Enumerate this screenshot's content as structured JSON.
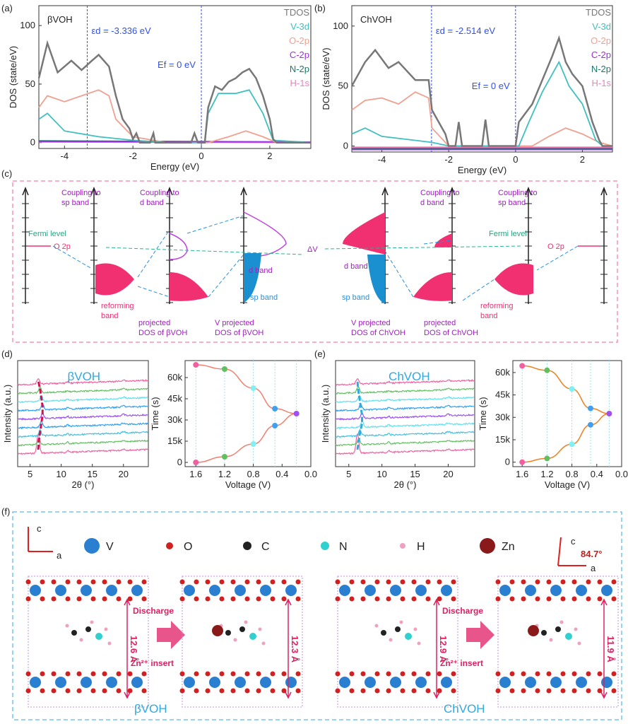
{
  "panel_labels": {
    "a": "(a)",
    "b": "(b)",
    "c": "(c)",
    "d": "(d)",
    "e": "(e)",
    "f": "(f)"
  },
  "chart_data": [
    {
      "id": "a",
      "type": "line",
      "title": "βVOH",
      "xlabel": "Energy (eV)",
      "ylabel": "DOS (state/eV)",
      "xlim": [
        -4.75,
        3.2
      ],
      "ylim": [
        -5,
        117
      ],
      "xticks": [
        -4,
        -2,
        0,
        2
      ],
      "yticks": [
        0,
        50,
        100
      ],
      "annotations": {
        "ed": "εd = -3.336 eV",
        "ed_value": -3.336,
        "ef": "Ef = 0 eV",
        "ef_value": 0
      },
      "legend": [
        "TDOS",
        "V-3d",
        "O-2p",
        "C-2p",
        "N-2p",
        "H-1s"
      ],
      "colors": [
        "#777777",
        "#3fbfbf",
        "#f0a090",
        "#9b30e0",
        "#1a7a6a",
        "#f080c0"
      ],
      "series": [
        {
          "name": "TDOS",
          "x": [
            -4.75,
            -4.5,
            -4.2,
            -3.8,
            -3.5,
            -3.2,
            -3,
            -2.7,
            -2.5,
            -2.3,
            -2.1,
            -2,
            -1.9,
            -1.8,
            -1.5,
            -1.4,
            -1.35,
            -0.3,
            -0.2,
            -0.1,
            0.1,
            0.2,
            0.4,
            0.6,
            0.8,
            1,
            1.2,
            1.4,
            1.6,
            1.8,
            2,
            2.1,
            2.2,
            3.2
          ],
          "y": [
            55,
            85,
            60,
            70,
            62,
            70,
            75,
            65,
            40,
            20,
            12,
            3,
            8,
            0,
            0,
            8,
            0,
            0,
            8,
            0,
            0,
            30,
            48,
            45,
            52,
            55,
            60,
            63,
            55,
            40,
            20,
            3,
            0,
            0
          ]
        },
        {
          "name": "V-3d",
          "x": [
            -4.75,
            -4.5,
            -4,
            -3,
            -2,
            -1,
            0.1,
            0.2,
            0.5,
            1,
            1.4,
            1.8,
            2.1,
            3.2
          ],
          "y": [
            20,
            25,
            10,
            5,
            2,
            0,
            0,
            25,
            42,
            42,
            45,
            25,
            2,
            0
          ]
        },
        {
          "name": "O-2p",
          "x": [
            -4.75,
            -4.5,
            -4,
            -3.5,
            -3,
            -2.7,
            -2.5,
            -2,
            -1,
            0.2,
            0.8,
            1.3,
            1.8,
            2.2,
            3.2
          ],
          "y": [
            30,
            40,
            35,
            40,
            45,
            40,
            20,
            5,
            0,
            0,
            5,
            10,
            5,
            0,
            0
          ]
        },
        {
          "name": "C-2p",
          "x": [
            -4.75,
            3.2
          ],
          "y": [
            1,
            0.5
          ]
        },
        {
          "name": "N-2p",
          "x": [
            -4.75,
            3.2
          ],
          "y": [
            1.5,
            0.5
          ]
        },
        {
          "name": "H-1s",
          "x": [
            -4.75,
            3.2
          ],
          "y": [
            0.5,
            0
          ]
        }
      ]
    },
    {
      "id": "b",
      "type": "line",
      "title": "ChVOH",
      "xlabel": "Energy (eV)",
      "ylabel": "DOS (state/eV)",
      "xlim": [
        -4.9,
        2.9
      ],
      "ylim": [
        -5,
        117
      ],
      "xticks": [
        -4,
        -2,
        0,
        2
      ],
      "yticks": [
        0,
        50,
        100
      ],
      "annotations": {
        "ed": "εd = -2.514 eV",
        "ed_value": -2.514,
        "ef": "Ef = 0 eV",
        "ef_value": 0
      },
      "legend": [
        "TDOS",
        "V-3d",
        "O-2p",
        "C-2p",
        "N-2p",
        "H-1s"
      ],
      "colors": [
        "#777777",
        "#3fbfbf",
        "#f0a090",
        "#9b30e0",
        "#1a7a6a",
        "#f080c0"
      ],
      "series": [
        {
          "name": "TDOS",
          "x": [
            -4.9,
            -4.5,
            -4.2,
            -3.8,
            -3.5,
            -3,
            -2.6,
            -2.5,
            -2.3,
            -2.1,
            -2,
            -1.8,
            -1.7,
            -1.6,
            -1,
            -0.9,
            -0.8,
            0,
            0.1,
            0.5,
            0.8,
            1.1,
            1.3,
            1.5,
            1.7,
            2,
            2.3,
            2.5,
            2.6,
            2.9
          ],
          "y": [
            50,
            70,
            80,
            65,
            70,
            55,
            55,
            30,
            20,
            10,
            0,
            0,
            20,
            0,
            0,
            22,
            0,
            0,
            20,
            35,
            55,
            75,
            90,
            70,
            60,
            50,
            20,
            5,
            0,
            0
          ]
        },
        {
          "name": "V-3d",
          "x": [
            -4.9,
            -4.5,
            -4,
            -2.5,
            -2,
            0.1,
            0.4,
            0.8,
            1.3,
            1.6,
            2,
            2.4,
            2.6,
            2.9
          ],
          "y": [
            10,
            15,
            8,
            3,
            0,
            0,
            20,
            45,
            70,
            50,
            35,
            5,
            0,
            0
          ]
        },
        {
          "name": "O-2p",
          "x": [
            -4.9,
            -4.5,
            -4,
            -3.5,
            -3,
            -2.6,
            -2.5,
            -2,
            0.5,
            1,
            1.5,
            2,
            2.5,
            2.9
          ],
          "y": [
            30,
            38,
            40,
            35,
            45,
            40,
            15,
            0,
            0,
            8,
            15,
            10,
            3,
            0
          ]
        },
        {
          "name": "C-2p",
          "x": [
            -4.9,
            2.9
          ],
          "y": [
            -3,
            -3
          ]
        },
        {
          "name": "N-2p",
          "x": [
            -4.9,
            2.9
          ],
          "y": [
            -2,
            -2
          ]
        },
        {
          "name": "H-1s",
          "x": [
            -4.9,
            2.9
          ],
          "y": [
            -1,
            -1
          ]
        }
      ]
    },
    {
      "id": "d-xrd",
      "type": "line",
      "title": "βVOH",
      "xlabel": "2θ (°)",
      "ylabel": "Intensity (a.u.)",
      "xlim": [
        3,
        24
      ],
      "xticks": [
        5,
        10,
        15,
        20
      ],
      "colors": [
        "#f060a0",
        "#60c060",
        "#40c0e0",
        "#30a0f0",
        "#9b50f0",
        "#30a0f0",
        "#60e0f0",
        "#60c060",
        "#f060a0"
      ],
      "peak_positions": [
        6.3,
        6.6,
        6.8,
        7.0,
        7.0,
        6.8,
        6.6,
        6.4,
        6.3
      ]
    },
    {
      "id": "d-time",
      "type": "line",
      "xlabel": "Voltage (V)",
      "ylabel": "Time (s)",
      "xlim": [
        1.75,
        0
      ],
      "ylim": [
        -3000,
        72000
      ],
      "xticks": [
        "1.6",
        "1.2",
        "0.8",
        "0.4",
        "0.0"
      ],
      "yticks": [
        "0",
        "15k",
        "30k",
        "45k",
        "60k"
      ],
      "color": "#f08070",
      "points": [
        {
          "v": 1.6,
          "t": 69000,
          "c": "#f060a0"
        },
        {
          "v": 1.2,
          "t": 66000,
          "c": "#60c060"
        },
        {
          "v": 0.8,
          "t": 52500,
          "c": "#80f0f0"
        },
        {
          "v": 0.5,
          "t": 38000,
          "c": "#40a0f0"
        },
        {
          "v": 0.2,
          "t": 34500,
          "c": "#a050f0"
        },
        {
          "v": 0.5,
          "t": 26000,
          "c": "#40a0f0"
        },
        {
          "v": 0.8,
          "t": 13000,
          "c": "#80f0f0"
        },
        {
          "v": 1.2,
          "t": 4000,
          "c": "#60c060"
        },
        {
          "v": 1.6,
          "t": 0,
          "c": "#f060a0"
        }
      ]
    },
    {
      "id": "e-xrd",
      "type": "line",
      "title": "ChVOH",
      "xlabel": "2θ (°)",
      "ylabel": "Intensity (a.u.)",
      "xlim": [
        3,
        24
      ],
      "xticks": [
        5,
        10,
        15,
        20
      ],
      "colors": [
        "#f060a0",
        "#60c060",
        "#40c0e0",
        "#60e0f0",
        "#9b50f0",
        "#30a0f0",
        "#60e0f0",
        "#60c060",
        "#f060a0"
      ],
      "peak_positions": [
        6.3,
        6.4,
        6.6,
        6.8,
        7.0,
        7.0,
        6.7,
        6.5,
        6.3
      ]
    },
    {
      "id": "e-time",
      "type": "line",
      "xlabel": "Voltage (V)",
      "ylabel": "Time (s)",
      "xlim": [
        1.75,
        0
      ],
      "ylim": [
        -3000,
        68000
      ],
      "xticks": [
        "1.6",
        "1.2",
        "0.8",
        "0.4",
        "0.0"
      ],
      "yticks": [
        "0",
        "15k",
        "30k",
        "45k",
        "60k"
      ],
      "color": "#f08020",
      "points": [
        {
          "v": 1.6,
          "t": 64500,
          "c": "#f060a0"
        },
        {
          "v": 1.2,
          "t": 61500,
          "c": "#60c060"
        },
        {
          "v": 0.8,
          "t": 49000,
          "c": "#80f0f0"
        },
        {
          "v": 0.5,
          "t": 36000,
          "c": "#40a0f0"
        },
        {
          "v": 0.2,
          "t": 32500,
          "c": "#a050f0"
        },
        {
          "v": 0.5,
          "t": 25000,
          "c": "#40a0f0"
        },
        {
          "v": 0.8,
          "t": 12000,
          "c": "#80f0f0"
        },
        {
          "v": 1.2,
          "t": 2500,
          "c": "#60c060"
        },
        {
          "v": 1.6,
          "t": 0,
          "c": "#f060a0"
        }
      ]
    }
  ],
  "diagram_c": {
    "o2p": "O 2p",
    "coupling_sp": [
      "Coupling to",
      "sp band"
    ],
    "coupling_d": [
      "Coupling to",
      "d band"
    ],
    "fermi": "Fermi level",
    "reforming": [
      "reforming",
      "band"
    ],
    "d_band": "d band",
    "sp_band": "sp band",
    "delta_v": "ΔV",
    "pdos_b": [
      "projected",
      "DOS of βVOH"
    ],
    "vpdos_b": [
      "V projected",
      "DOS of βVOH"
    ],
    "vpdos_c": [
      "V projected",
      "DOS of ChVOH"
    ],
    "pdos_c": [
      "projected",
      "DOS of ChVOH"
    ]
  },
  "structure_f": {
    "axes": {
      "c": "c",
      "a": "a",
      "angle": "84.7°"
    },
    "legend": [
      {
        "label": "V",
        "color": "#2a7fd0"
      },
      {
        "label": "O",
        "color": "#d02020"
      },
      {
        "label": "C",
        "color": "#222222"
      },
      {
        "label": "N",
        "color": "#30d0d0"
      },
      {
        "label": "H",
        "color": "#f0a0c0"
      },
      {
        "label": "Zn",
        "color": "#8a1a1a"
      }
    ],
    "discharge": "Discharge",
    "zn_insert": "Zn²⁺ insert",
    "spacings": [
      "12.6 Å",
      "12.3 Å",
      "12.9 Å",
      "11.9 Å"
    ],
    "names": [
      "βVOH",
      "ChVOH"
    ]
  }
}
